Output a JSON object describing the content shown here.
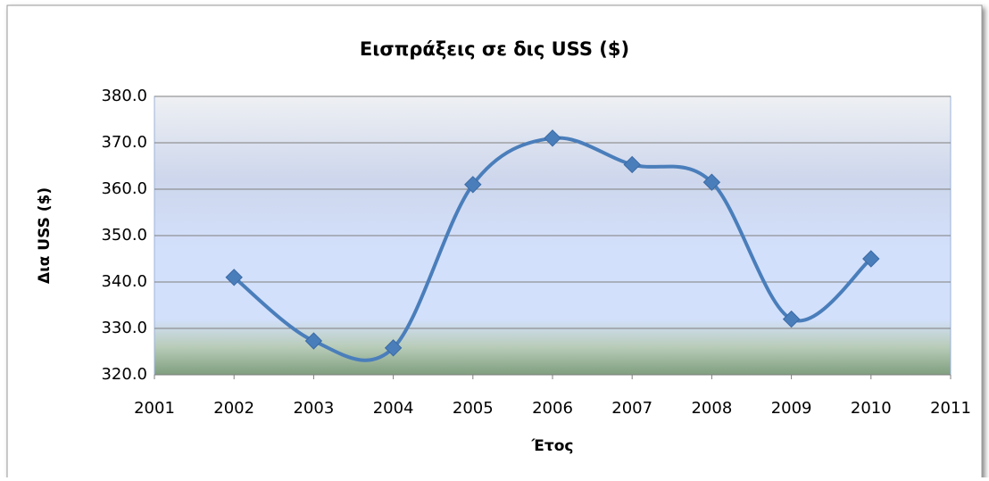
{
  "chart_data": {
    "type": "line",
    "title": "Εισπράξεις σε δις USS ($)",
    "xlabel": "Έτος",
    "ylabel": "Δια USS ($)",
    "x": [
      2002,
      2003,
      2004,
      2005,
      2006,
      2007,
      2008,
      2009,
      2010
    ],
    "series": [
      {
        "name": "Εισπράξεις",
        "color": "#4a7ebb",
        "values": [
          341.0,
          327.3,
          325.8,
          361.0,
          371.0,
          365.3,
          361.5,
          332.0,
          345.0
        ]
      }
    ],
    "xlim": [
      2001,
      2011
    ],
    "xticks": [
      2001,
      2002,
      2003,
      2004,
      2005,
      2006,
      2007,
      2008,
      2009,
      2010,
      2011
    ],
    "ylim": [
      320,
      380
    ],
    "yticks": [
      {
        "value": 320,
        "label": "320.0"
      },
      {
        "value": 330,
        "label": "330.0"
      },
      {
        "value": 340,
        "label": "340.0"
      },
      {
        "value": 350,
        "label": "350.0"
      },
      {
        "value": 360,
        "label": "360.0"
      },
      {
        "value": 370,
        "label": "370.0"
      },
      {
        "value": 380,
        "label": "380.0"
      }
    ],
    "grid": true,
    "smooth": true
  }
}
